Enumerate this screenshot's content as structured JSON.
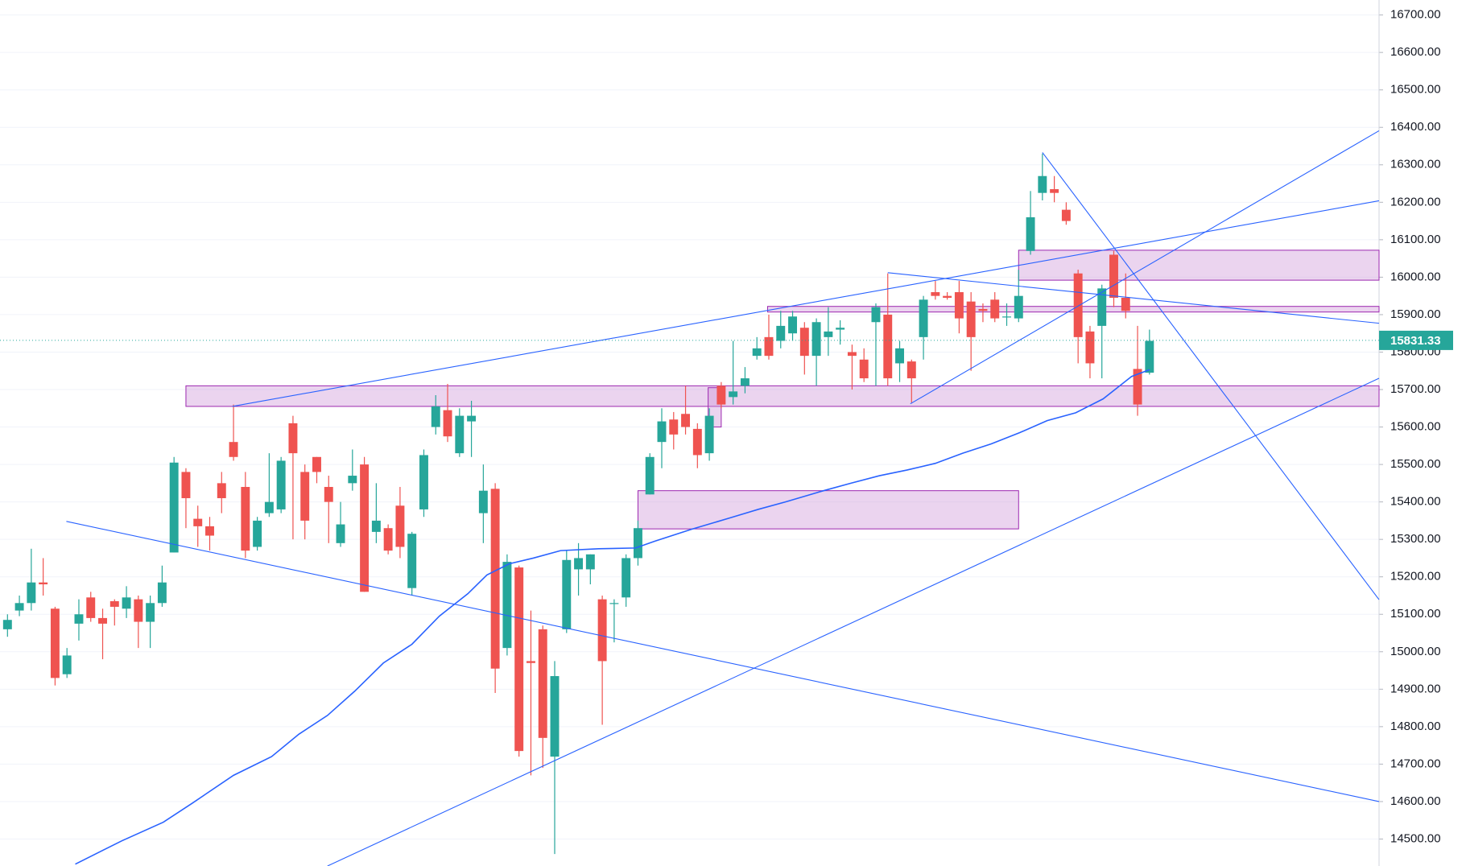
{
  "chart_data": {
    "type": "candlestick",
    "up_color": "#26a69a",
    "down_color": "#ef5350",
    "xlim": [
      -0.63,
      115.3
    ],
    "ylim": [
      14428,
      16740
    ],
    "yticks": [
      {
        "value": 14500,
        "label": "14500.00"
      },
      {
        "value": 14600,
        "label": "14600.00"
      },
      {
        "value": 14700,
        "label": "14700.00"
      },
      {
        "value": 14800,
        "label": "14800.00"
      },
      {
        "value": 14900,
        "label": "14900.00"
      },
      {
        "value": 15000,
        "label": "15000.00"
      },
      {
        "value": 15100,
        "label": "15100.00"
      },
      {
        "value": 15200,
        "label": "15200.00"
      },
      {
        "value": 15300,
        "label": "15300.00"
      },
      {
        "value": 15400,
        "label": "15400.00"
      },
      {
        "value": 15500,
        "label": "15500.00"
      },
      {
        "value": 15600,
        "label": "15600.00"
      },
      {
        "value": 15700,
        "label": "15700.00"
      },
      {
        "value": 15800,
        "label": "15800.00"
      },
      {
        "value": 15900,
        "label": "15900.00"
      },
      {
        "value": 16000,
        "label": "16000.00"
      },
      {
        "value": 16100,
        "label": "16100.00"
      },
      {
        "value": 16200,
        "label": "16200.00"
      },
      {
        "value": 16300,
        "label": "16300.00"
      },
      {
        "value": 16400,
        "label": "16400.00"
      },
      {
        "value": 16500,
        "label": "16500.00"
      },
      {
        "value": 16600,
        "label": "16600.00"
      },
      {
        "value": 16700,
        "label": "16700.00"
      }
    ],
    "grid": true,
    "open": [
      15060,
      15110,
      15130,
      15185,
      15115,
      14940,
      15075,
      15145,
      15090,
      15135,
      15115,
      15140,
      15080,
      15130,
      15265,
      15480,
      15355,
      15335,
      15450,
      15560,
      15440,
      15280,
      15370,
      15380,
      15610,
      15480,
      15520,
      15440,
      15290,
      15450,
      15500,
      15320,
      15330,
      15390,
      15170,
      15380,
      15600,
      15645,
      15530,
      15615,
      15370,
      15435,
      15010,
      15225,
      14975,
      15060,
      14720,
      15060,
      15220,
      15220,
      15140,
      15130,
      15145,
      15250,
      15420,
      15560,
      15620,
      15635,
      15595,
      15530,
      15710,
      15680,
      15710,
      15790,
      15840,
      15830,
      15850,
      15865,
      15790,
      15840,
      15860,
      15800,
      15780,
      15880,
      15900,
      15770,
      15775,
      15840,
      15960,
      15950,
      15960,
      15935,
      15915,
      15940,
      15895,
      15890,
      16070,
      16225,
      16235,
      16180,
      16010,
      15855,
      15870,
      16060,
      15945,
      15755,
      15745
    ],
    "high": [
      15100,
      15150,
      15275,
      15250,
      15120,
      15010,
      15140,
      15160,
      15115,
      15140,
      15175,
      15150,
      15150,
      15230,
      15520,
      15490,
      15390,
      15360,
      15480,
      15660,
      15480,
      15360,
      15530,
      15520,
      15630,
      15500,
      15520,
      15470,
      15400,
      15540,
      15520,
      15450,
      15340,
      15440,
      15320,
      15540,
      15685,
      15715,
      15650,
      15670,
      15500,
      15450,
      15260,
      15230,
      15110,
      15070,
      14975,
      15270,
      15290,
      15260,
      15150,
      15140,
      15260,
      15350,
      15530,
      15650,
      15640,
      15710,
      15610,
      15650,
      15720,
      15830,
      15760,
      15840,
      15900,
      15910,
      15910,
      15880,
      15890,
      15920,
      15885,
      15820,
      15810,
      15930,
      16010,
      15830,
      15780,
      15950,
      15990,
      15960,
      15990,
      15960,
      15930,
      15960,
      15930,
      16020,
      16230,
      16330,
      16270,
      16200,
      16020,
      15870,
      15980,
      16070,
      16010,
      15870,
      15860
    ],
    "low": [
      15040,
      15095,
      15110,
      15150,
      14910,
      14930,
      15030,
      15080,
      14980,
      15070,
      15090,
      15010,
      15010,
      15120,
      15265,
      15330,
      15280,
      15270,
      15370,
      15510,
      15250,
      15270,
      15360,
      15370,
      15300,
      15300,
      15450,
      15290,
      15280,
      15430,
      15160,
      15290,
      15260,
      15250,
      15150,
      15360,
      15580,
      15560,
      15520,
      15520,
      15290,
      14890,
      14990,
      14720,
      14670,
      14690,
      14460,
      15050,
      15150,
      15180,
      14805,
      15025,
      15120,
      15230,
      15420,
      15490,
      15540,
      15580,
      15490,
      15510,
      15650,
      15660,
      15690,
      15780,
      15780,
      15810,
      15830,
      15740,
      15710,
      15790,
      15820,
      15700,
      15720,
      15710,
      15710,
      15720,
      15665,
      15780,
      15940,
      15940,
      15850,
      15750,
      15880,
      15880,
      15870,
      15880,
      16060,
      16205,
      16200,
      16140,
      15770,
      15730,
      15730,
      15920,
      15890,
      15630,
      15740
    ],
    "close": [
      15085,
      15130,
      15185,
      15180,
      14930,
      14990,
      15100,
      15090,
      15075,
      15120,
      15145,
      15080,
      15130,
      15185,
      15505,
      15410,
      15335,
      15310,
      15410,
      15520,
      15270,
      15350,
      15400,
      15510,
      15530,
      15350,
      15480,
      15400,
      15340,
      15470,
      15160,
      15350,
      15270,
      15280,
      15315,
      15525,
      15655,
      15575,
      15630,
      15630,
      15430,
      14955,
      15240,
      14735,
      14970,
      14770,
      14935,
      15245,
      15250,
      15260,
      14975,
      15130,
      15250,
      15330,
      15520,
      15615,
      15580,
      15600,
      15525,
      15630,
      15660,
      15695,
      15730,
      15810,
      15790,
      15870,
      15895,
      15790,
      15880,
      15855,
      15865,
      15790,
      15730,
      15920,
      15730,
      15810,
      15730,
      15940,
      15950,
      15945,
      15890,
      15840,
      15910,
      15890,
      15895,
      15950,
      16160,
      16270,
      16225,
      16150,
      15840,
      15770,
      15970,
      15945,
      15910,
      15660,
      15830
    ],
    "ma": {
      "color": "#2962ff",
      "x": [
        5.7,
        9.6,
        13.1,
        15.5,
        19.0,
        22.2,
        24.5,
        26.9,
        29.2,
        31.6,
        34.0,
        36.3,
        38.7,
        40.3,
        42.2,
        44.2,
        46.5,
        49.7,
        52.8,
        54.4,
        57.5,
        60.7,
        63.1,
        65.4,
        68.6,
        70.9,
        73.3,
        75.6,
        78.0,
        80.3,
        82.7,
        85.1,
        87.4,
        89.8,
        92.1,
        94.5,
        96.0
      ],
      "values": [
        14433,
        14495,
        14545,
        14595,
        14670,
        14720,
        14780,
        14830,
        14895,
        14970,
        15020,
        15095,
        15155,
        15205,
        15235,
        15250,
        15270,
        15275,
        15277,
        15295,
        15327,
        15357,
        15380,
        15400,
        15430,
        15450,
        15470,
        15485,
        15503,
        15530,
        15555,
        15585,
        15617,
        15638,
        15675,
        15735,
        15753
      ]
    },
    "zones": [
      {
        "x": [
          15.0,
          115.3
        ],
        "y": [
          15655,
          15710
        ]
      },
      {
        "x": [
          53.0,
          85.0
        ],
        "y": [
          15328,
          15430
        ]
      },
      {
        "x": [
          85.0,
          115.3
        ],
        "y": [
          15992,
          16072
        ]
      },
      {
        "x": [
          63.9,
          115.3
        ],
        "y": [
          15907,
          15922
        ]
      },
      {
        "x": [
          58.9,
          60.0
        ],
        "y": [
          15600,
          15705
        ]
      }
    ],
    "trendlines": [
      {
        "x": [
          4.95,
          115.3
        ],
        "y": [
          15348,
          14600
        ]
      },
      {
        "x": [
          18.9,
          115.3
        ],
        "y": [
          15655,
          16204
        ]
      },
      {
        "x": [
          26.9,
          115.3
        ],
        "y": [
          14428,
          15730
        ]
      },
      {
        "x": [
          74.0,
          115.3
        ],
        "y": [
          16012,
          15877
        ]
      },
      {
        "x": [
          75.9,
          115.3
        ],
        "y": [
          15662,
          16391
        ]
      },
      {
        "x": [
          87.0,
          115.3
        ],
        "y": [
          16333,
          15139
        ]
      }
    ],
    "last_price": 15831.33
  }
}
